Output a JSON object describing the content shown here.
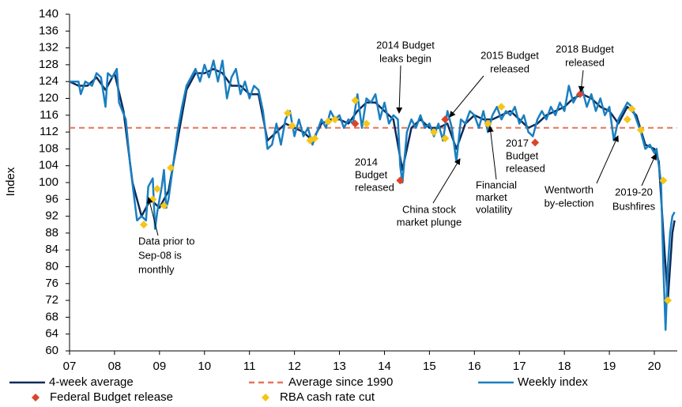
{
  "chart_data": {
    "type": "line",
    "y_label": "Index",
    "xlim": [
      7,
      20.5
    ],
    "xticks": [
      {
        "value": 7,
        "label": "07"
      },
      {
        "value": 8,
        "label": "08"
      },
      {
        "value": 9,
        "label": "09"
      },
      10,
      11,
      12,
      13,
      14,
      15,
      16,
      17,
      18,
      19,
      20
    ],
    "ylim": [
      60,
      140
    ],
    "yticks": [
      60,
      64,
      68,
      72,
      76,
      80,
      84,
      88,
      92,
      96,
      100,
      104,
      108,
      112,
      116,
      120,
      124,
      128,
      132,
      136,
      140
    ],
    "grid": false,
    "series": [
      {
        "name": "4-week average",
        "color": "#0d2b5a",
        "style": "line",
        "x": [
          7.0,
          7.2,
          7.4,
          7.6,
          7.8,
          8.0,
          8.2,
          8.4,
          8.6,
          8.8,
          9.0,
          9.2,
          9.4,
          9.6,
          9.8,
          10.0,
          10.2,
          10.4,
          10.6,
          10.8,
          11.0,
          11.2,
          11.4,
          11.6,
          11.8,
          12.0,
          12.2,
          12.4,
          12.6,
          12.8,
          13.0,
          13.2,
          13.4,
          13.6,
          13.8,
          14.0,
          14.2,
          14.4,
          14.6,
          14.8,
          15.0,
          15.2,
          15.4,
          15.6,
          15.8,
          16.0,
          16.2,
          16.4,
          16.6,
          16.8,
          17.0,
          17.2,
          17.4,
          17.6,
          17.8,
          18.0,
          18.2,
          18.4,
          18.6,
          18.8,
          19.0,
          19.2,
          19.4,
          19.6,
          19.8,
          20.0,
          20.1,
          20.2,
          20.3,
          20.4,
          20.45
        ],
        "values": [
          124,
          123,
          123,
          125,
          122,
          126,
          117,
          100,
          92,
          96,
          94,
          98,
          110,
          122,
          126,
          126,
          127,
          126,
          123,
          123,
          121,
          121,
          110,
          112,
          114,
          113,
          112,
          110,
          114,
          115,
          115,
          114,
          117,
          119,
          119,
          117,
          115,
          103,
          113,
          115,
          113,
          113,
          114,
          108,
          114,
          116,
          115,
          115,
          116,
          117,
          115,
          113,
          114,
          116,
          117,
          118,
          120,
          121,
          120,
          118,
          117,
          114,
          118,
          116,
          109,
          108,
          105,
          88,
          72,
          88,
          91
        ]
      },
      {
        "name": "Average since 1990",
        "color": "#e8735a",
        "style": "dash",
        "x": [
          7,
          20.5
        ],
        "values": [
          113,
          113
        ]
      },
      {
        "name": "Weekly index",
        "color": "#1a7fc1",
        "style": "line",
        "x": [
          7.0,
          7.1,
          7.2,
          7.25,
          7.35,
          7.5,
          7.6,
          7.7,
          7.8,
          7.85,
          7.95,
          8.05,
          8.1,
          8.25,
          8.35,
          8.5,
          8.6,
          8.7,
          8.75,
          8.85,
          8.9,
          8.95,
          9.0,
          9.05,
          9.1,
          9.15,
          9.2,
          9.3,
          9.4,
          9.5,
          9.6,
          9.7,
          9.8,
          9.9,
          10.0,
          10.1,
          10.2,
          10.3,
          10.4,
          10.5,
          10.6,
          10.7,
          10.8,
          10.9,
          11.0,
          11.1,
          11.2,
          11.3,
          11.4,
          11.5,
          11.6,
          11.7,
          11.8,
          11.9,
          12.0,
          12.1,
          12.2,
          12.3,
          12.4,
          12.5,
          12.6,
          12.7,
          12.8,
          12.9,
          13.0,
          13.1,
          13.2,
          13.3,
          13.4,
          13.5,
          13.6,
          13.7,
          13.8,
          13.9,
          14.0,
          14.1,
          14.2,
          14.3,
          14.35,
          14.4,
          14.5,
          14.6,
          14.7,
          14.8,
          14.9,
          15.0,
          15.1,
          15.2,
          15.3,
          15.4,
          15.5,
          15.6,
          15.7,
          15.8,
          15.9,
          16.0,
          16.1,
          16.2,
          16.3,
          16.4,
          16.5,
          16.6,
          16.7,
          16.8,
          16.9,
          17.0,
          17.1,
          17.2,
          17.3,
          17.4,
          17.5,
          17.6,
          17.7,
          17.8,
          17.9,
          18.0,
          18.1,
          18.2,
          18.3,
          18.4,
          18.5,
          18.6,
          18.7,
          18.8,
          18.9,
          19.0,
          19.1,
          19.2,
          19.3,
          19.4,
          19.5,
          19.6,
          19.7,
          19.8,
          19.9,
          20.0,
          20.05,
          20.1,
          20.15,
          20.2,
          20.25,
          20.3,
          20.35,
          20.4,
          20.45
        ],
        "values": [
          124,
          124,
          124,
          121,
          124,
          123,
          126,
          125,
          118,
          126,
          125,
          127,
          119,
          115,
          104,
          91,
          92,
          91,
          99,
          101,
          89,
          93,
          96,
          99,
          103,
          94,
          96,
          104,
          112,
          118,
          123,
          125,
          127,
          124,
          128,
          125,
          129,
          124,
          129,
          120,
          125,
          127,
          121,
          124,
          120,
          123,
          122,
          117,
          108,
          109,
          114,
          109,
          115,
          117,
          111,
          115,
          111,
          113,
          109,
          112,
          115,
          113,
          117,
          115,
          116,
          113,
          115,
          114,
          121,
          113,
          120,
          119,
          121,
          115,
          119,
          114,
          116,
          115,
          104,
          100,
          112,
          115,
          113,
          116,
          113,
          114,
          111,
          114,
          110,
          117,
          113,
          105,
          115,
          114,
          117,
          116,
          113,
          117,
          112,
          116,
          118,
          115,
          117,
          116,
          118,
          114,
          116,
          112,
          111,
          115,
          117,
          115,
          118,
          116,
          119,
          117,
          123,
          119,
          121,
          122,
          118,
          121,
          117,
          120,
          116,
          118,
          110,
          115,
          117,
          119,
          118,
          115,
          112,
          108,
          109,
          107,
          108,
          104,
          100,
          80,
          65,
          80,
          88,
          92,
          93
        ]
      },
      {
        "name": "Federal Budget release",
        "color": "#d9452b",
        "style": "diamond",
        "x": [
          13.35,
          14.35,
          15.35,
          16.3,
          17.35,
          18.35
        ],
        "values": [
          114,
          100.5,
          115,
          114,
          109.5,
          121
        ]
      },
      {
        "name": "RBA cash rate cut",
        "color": "#f5c518",
        "style": "diamond",
        "x": [
          8.65,
          8.85,
          8.95,
          9.1,
          9.25,
          11.85,
          11.95,
          12.35,
          12.45,
          12.75,
          12.9,
          13.35,
          13.6,
          15.1,
          15.35,
          16.3,
          16.6,
          19.4,
          19.5,
          19.7,
          20.2,
          20.3
        ],
        "values": [
          90,
          96,
          98.5,
          94.5,
          103.5,
          116.5,
          113.5,
          110,
          110.5,
          114.5,
          115,
          119.5,
          114,
          112,
          110.5,
          114,
          118,
          115,
          117.5,
          112.5,
          100.5,
          72
        ]
      }
    ],
    "annotations": [
      {
        "lines": [
          "Data prior to",
          "Sep-08 is",
          "monthly"
        ]
      },
      {
        "lines": [
          "2014 Budget",
          "leaks begin"
        ]
      },
      {
        "lines": [
          "2015 Budget",
          "released"
        ]
      },
      {
        "lines": [
          "2018 Budget",
          "released"
        ]
      },
      {
        "lines": [
          "2014",
          "Budget",
          "released"
        ]
      },
      {
        "lines": [
          "China stock",
          "market plunge"
        ]
      },
      {
        "lines": [
          "Financial",
          "market",
          "volatility"
        ]
      },
      {
        "lines": [
          "2017",
          "Budget",
          "released"
        ]
      },
      {
        "lines": [
          "Wentworth",
          "by-election"
        ]
      },
      {
        "lines": [
          "2019-20",
          "Bushfires"
        ]
      }
    ]
  }
}
